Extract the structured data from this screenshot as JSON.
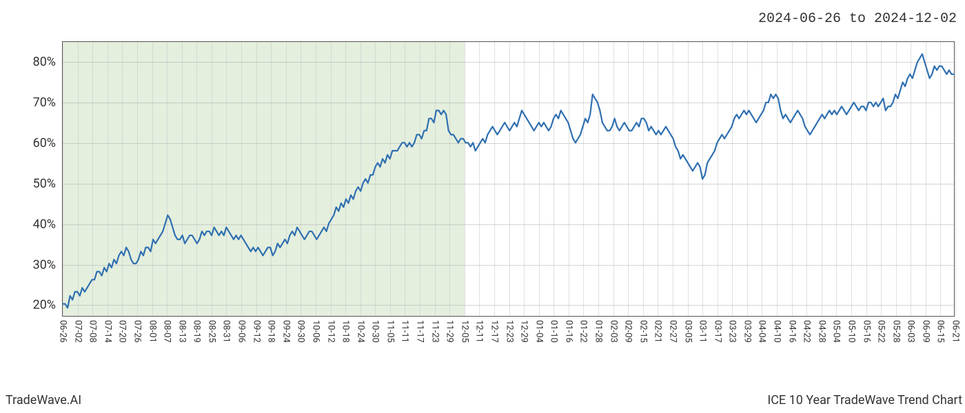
{
  "date_range_label": "2024-06-26 to 2024-12-02",
  "footer_left": "TradeWave.AI",
  "footer_right": "ICE 10 Year TradeWave Trend Chart",
  "chart": {
    "type": "line",
    "background_color": "#ffffff",
    "grid_color": "#cccccc",
    "border_color": "#555555",
    "line_color": "#2f6fb0",
    "line_width": 2.2,
    "highlight_fill": "#d9e8d0",
    "highlight_opacity": 0.7,
    "highlight_start_index": 0,
    "highlight_end_index": 27,
    "y_axis": {
      "min": 17,
      "max": 85,
      "ticks": [
        20,
        30,
        40,
        50,
        60,
        70,
        80
      ],
      "tick_labels": [
        "20%",
        "30%",
        "40%",
        "50%",
        "60%",
        "70%",
        "80%"
      ],
      "label_fontsize": 18,
      "label_color": "#333333"
    },
    "x_axis": {
      "labels": [
        "06-26",
        "07-02",
        "07-08",
        "07-14",
        "07-20",
        "07-26",
        "08-01",
        "08-07",
        "08-13",
        "08-19",
        "08-25",
        "08-31",
        "09-06",
        "09-12",
        "09-18",
        "09-24",
        "09-30",
        "10-06",
        "10-12",
        "10-18",
        "10-24",
        "10-30",
        "11-05",
        "11-11",
        "11-17",
        "11-23",
        "11-29",
        "12-05",
        "12-11",
        "12-17",
        "12-23",
        "12-29",
        "01-04",
        "01-10",
        "01-16",
        "01-22",
        "01-28",
        "02-03",
        "02-09",
        "02-15",
        "02-21",
        "02-27",
        "03-05",
        "03-11",
        "03-17",
        "03-23",
        "03-29",
        "04-04",
        "04-10",
        "04-16",
        "04-22",
        "04-28",
        "05-04",
        "05-10",
        "05-16",
        "05-22",
        "05-28",
        "06-03",
        "06-09",
        "06-15",
        "06-21"
      ],
      "label_fontsize": 13,
      "label_color": "#333333",
      "label_rotation": 90
    },
    "series": {
      "values": [
        20,
        20,
        19,
        22,
        21,
        23,
        23,
        22,
        24,
        23,
        24,
        25,
        26,
        26,
        28,
        28,
        27,
        29,
        28,
        30,
        29,
        31,
        30,
        32,
        33,
        32,
        34,
        33,
        31,
        30,
        30,
        31,
        33,
        32,
        34,
        34,
        33,
        36,
        35,
        36,
        37,
        38,
        40,
        42,
        41,
        39,
        37,
        36,
        36,
        37,
        35,
        36,
        37,
        37,
        36,
        35,
        36,
        38,
        37,
        38,
        38,
        37,
        39,
        38,
        37,
        38,
        37,
        39,
        38,
        37,
        36,
        37,
        36,
        37,
        36,
        35,
        34,
        33,
        34,
        33,
        34,
        33,
        32,
        33,
        34,
        34,
        32,
        33,
        35,
        34,
        35,
        36,
        35,
        37,
        38,
        37,
        39,
        38,
        37,
        36,
        37,
        38,
        38,
        37,
        36,
        37,
        38,
        39,
        38,
        40,
        41,
        42,
        44,
        43,
        45,
        44,
        46,
        45,
        47,
        46,
        48,
        49,
        48,
        50,
        51,
        50,
        52,
        52,
        54,
        55,
        54,
        56,
        55,
        57,
        56,
        58,
        58,
        58,
        59,
        60,
        60,
        59,
        60,
        59,
        60,
        62,
        62,
        61,
        63,
        63,
        66,
        66,
        65,
        68,
        68,
        67,
        68,
        67,
        63,
        62,
        62,
        61,
        60,
        61,
        61,
        60,
        60,
        59,
        60,
        58,
        59,
        60,
        61,
        60,
        62,
        63,
        64,
        63,
        62,
        63,
        64,
        65,
        64,
        63,
        64,
        65,
        64,
        66,
        68,
        67,
        66,
        65,
        64,
        63,
        64,
        65,
        64,
        65,
        64,
        63,
        64,
        66,
        67,
        66,
        68,
        67,
        66,
        65,
        63,
        61,
        60,
        61,
        62,
        64,
        66,
        65,
        67,
        72,
        71,
        70,
        68,
        65,
        64,
        63,
        63,
        64,
        66,
        64,
        63,
        64,
        65,
        64,
        63,
        63,
        64,
        65,
        64,
        66,
        66,
        65,
        63,
        64,
        63,
        62,
        63,
        62,
        63,
        64,
        63,
        62,
        61,
        59,
        58,
        56,
        57,
        56,
        55,
        54,
        53,
        54,
        55,
        54,
        51,
        52,
        55,
        56,
        57,
        58,
        60,
        61,
        62,
        61,
        62,
        63,
        64,
        66,
        67,
        66,
        67,
        68,
        67,
        68,
        67,
        66,
        65,
        66,
        67,
        68,
        70,
        70,
        72,
        71,
        72,
        71,
        68,
        66,
        67,
        66,
        65,
        66,
        67,
        68,
        67,
        66,
        64,
        63,
        62,
        63,
        64,
        65,
        66,
        67,
        66,
        67,
        68,
        67,
        68,
        67,
        68,
        69,
        68,
        67,
        68,
        69,
        70,
        69,
        68,
        69,
        69,
        68,
        70,
        70,
        69,
        70,
        69,
        70,
        71,
        68,
        69,
        69,
        70,
        72,
        71,
        73,
        75,
        74,
        76,
        77,
        76,
        78,
        80,
        81,
        82,
        80,
        78,
        76,
        77,
        79,
        78,
        79,
        79,
        78,
        77,
        78,
        77,
        77
      ]
    }
  }
}
